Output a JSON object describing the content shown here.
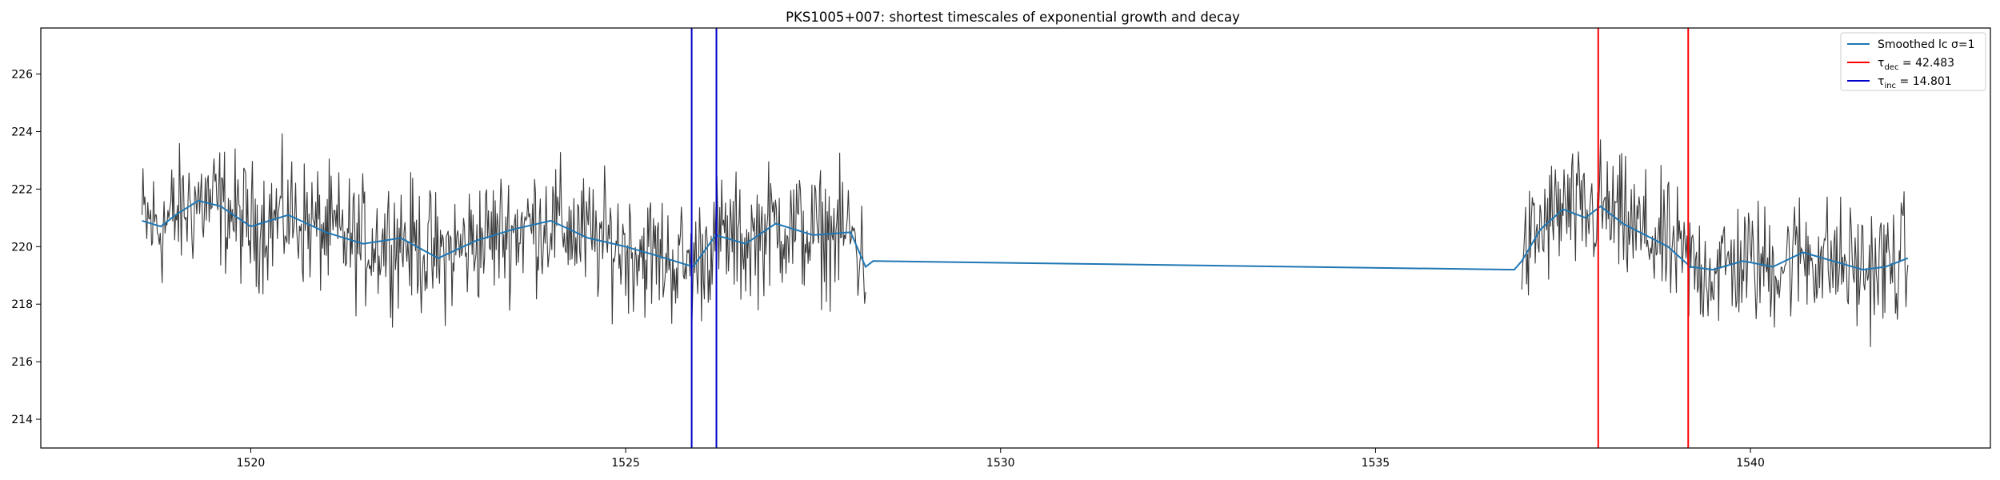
{
  "chart_data": {
    "type": "line",
    "title": "PKS1005+007: shortest timescales of exponential growth and decay",
    "xlabel": "",
    "ylabel": "",
    "xlim": [
      1517.2,
      1543.2
    ],
    "ylim": [
      213.0,
      227.6
    ],
    "xticks": [
      1520,
      1525,
      1530,
      1535,
      1540
    ],
    "yticks": [
      214,
      216,
      218,
      220,
      222,
      224,
      226
    ],
    "grid": false,
    "legend_position": "top-right",
    "legend": [
      {
        "key": "smoothed",
        "label": "Smoothed lc σ=1",
        "color": "#1f77b4"
      },
      {
        "key": "dec",
        "label_prefix": "τ",
        "label_sub": "dec",
        "label_suffix": " = 42.483",
        "color": "#ff0000"
      },
      {
        "key": "inc",
        "label_prefix": "τ",
        "label_sub": "inc",
        "label_suffix": " = 14.801",
        "color": "#0000cc"
      }
    ],
    "raw_lc": {
      "color": "#3a3a3a",
      "segments": [
        {
          "x_start": 1518.55,
          "x_end": 1528.2,
          "mean": 220.6,
          "spread": 1.6
        },
        {
          "x_start": 1536.95,
          "x_end": 1542.1,
          "mean": 220.0,
          "spread": 1.6
        }
      ]
    },
    "series": [
      {
        "name": "Smoothed lc σ=1",
        "color": "#1f77b4",
        "x": [
          1518.55,
          1518.8,
          1519.0,
          1519.3,
          1519.6,
          1520.0,
          1520.5,
          1521.0,
          1521.5,
          1522.0,
          1522.5,
          1523.0,
          1523.5,
          1524.0,
          1524.5,
          1525.0,
          1525.4,
          1525.9,
          1526.2,
          1526.6,
          1527.0,
          1527.5,
          1528.0,
          1528.2,
          1528.3,
          1536.85,
          1536.95,
          1537.2,
          1537.5,
          1537.8,
          1538.0,
          1538.3,
          1538.6,
          1538.9,
          1539.2,
          1539.5,
          1539.9,
          1540.3,
          1540.7,
          1541.1,
          1541.5,
          1541.8,
          1542.1
        ],
        "y": [
          220.9,
          220.7,
          221.1,
          221.6,
          221.4,
          220.7,
          221.1,
          220.5,
          220.1,
          220.3,
          219.6,
          220.2,
          220.6,
          220.9,
          220.3,
          220.0,
          219.7,
          219.3,
          220.4,
          220.1,
          220.8,
          220.4,
          220.5,
          219.3,
          219.5,
          219.2,
          219.5,
          220.6,
          221.3,
          221.0,
          221.4,
          220.8,
          220.4,
          220.0,
          219.3,
          219.2,
          219.5,
          219.3,
          219.8,
          219.5,
          219.2,
          219.3,
          219.6
        ]
      }
    ],
    "vlines": [
      {
        "name": "decay-start",
        "x": 1537.97,
        "color": "#ff0000"
      },
      {
        "name": "decay-end",
        "x": 1539.17,
        "color": "#ff0000"
      },
      {
        "name": "growth-start",
        "x": 1525.88,
        "color": "#0000cc"
      },
      {
        "name": "growth-end",
        "x": 1526.21,
        "color": "#0000cc"
      }
    ]
  }
}
